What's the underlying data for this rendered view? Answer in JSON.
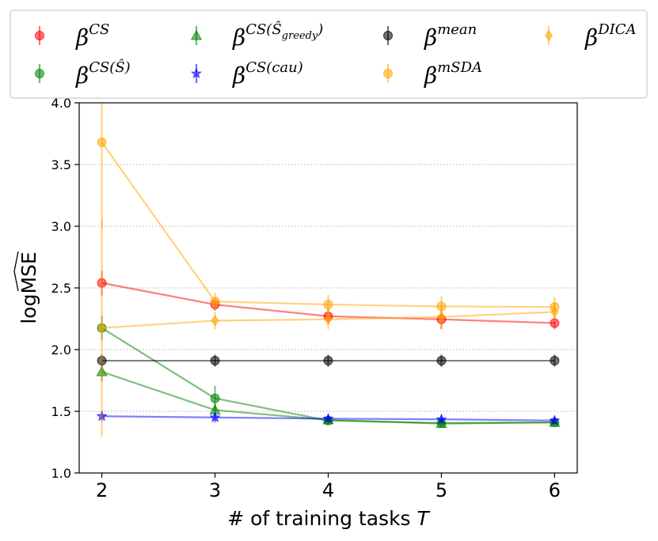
{
  "chart_data": {
    "type": "line",
    "title": "",
    "xlabel": "# of training tasks T",
    "xlabel_prefix": "# of training tasks ",
    "xlabel_var": "T",
    "ylabel": "logMSE",
    "x": [
      2,
      3,
      4,
      5,
      6
    ],
    "xticks": [
      "2",
      "3",
      "4",
      "5",
      "6"
    ],
    "xlim": [
      1.8,
      6.2
    ],
    "ylim": [
      1.0,
      4.0
    ],
    "yticks": [
      "1.0",
      "1.5",
      "2.0",
      "2.5",
      "3.0",
      "3.5",
      "4.0"
    ],
    "grid": "horizontal dotted",
    "legend_position": "top",
    "series": [
      {
        "name": "β^CS",
        "base": "β",
        "sup": "CS",
        "color": "#ff0000",
        "marker": "circle",
        "values": [
          2.54,
          2.365,
          2.27,
          2.245,
          2.215
        ],
        "errors": [
          0.1,
          0.05,
          0.06,
          0.08,
          0.05
        ]
      },
      {
        "name": "β^CS(Ŝ)",
        "base": "β",
        "sup": "CS(Ŝ)",
        "color": "#008000",
        "marker": "circle",
        "values": [
          2.175,
          1.605,
          1.425,
          1.405,
          1.41
        ],
        "errors": [
          0.1,
          0.1,
          0.03,
          0.02,
          0.02
        ]
      },
      {
        "name": "β^CS(Ŝ_greedy)",
        "base": "β",
        "sup": "CS(Ŝ",
        "sup_sub": "greedy",
        "sup_end": ")",
        "color": "#008000",
        "marker": "triangle",
        "values": [
          1.82,
          1.51,
          1.43,
          1.4,
          1.41
        ],
        "errors": [
          0.08,
          0.05,
          0.03,
          0.02,
          0.02
        ]
      },
      {
        "name": "β^CS(cau)",
        "base": "β",
        "sup": "CS(cau)",
        "color": "#0000ff",
        "marker": "star",
        "values": [
          1.46,
          1.45,
          1.44,
          1.435,
          1.425
        ],
        "errors": [
          0.04,
          0.04,
          0.03,
          0.03,
          0.03
        ]
      },
      {
        "name": "β^mean",
        "base": "β",
        "sup": "mean",
        "color": "#000000",
        "marker": "circle",
        "values": [
          1.91,
          1.91,
          1.91,
          1.91,
          1.91
        ],
        "errors": [
          0.05,
          0.05,
          0.05,
          0.05,
          0.05
        ]
      },
      {
        "name": "β^mSDA",
        "base": "β",
        "sup": "mSDA",
        "color": "#ffa500",
        "marker": "circle",
        "values": [
          3.68,
          2.39,
          2.365,
          2.35,
          2.345
        ],
        "errors": [
          0.7,
          0.07,
          0.08,
          0.08,
          0.08
        ]
      },
      {
        "name": "β^DICA",
        "base": "β",
        "sup": "DICA",
        "color": "#ffa500",
        "marker": "diamond",
        "values": [
          2.175,
          2.235,
          2.245,
          2.265,
          2.305
        ],
        "errors": [
          0.88,
          0.07,
          0.08,
          0.09,
          0.08
        ]
      }
    ],
    "legend_layout": [
      [
        0,
        2,
        4,
        6
      ],
      [
        1,
        3,
        5
      ]
    ]
  }
}
